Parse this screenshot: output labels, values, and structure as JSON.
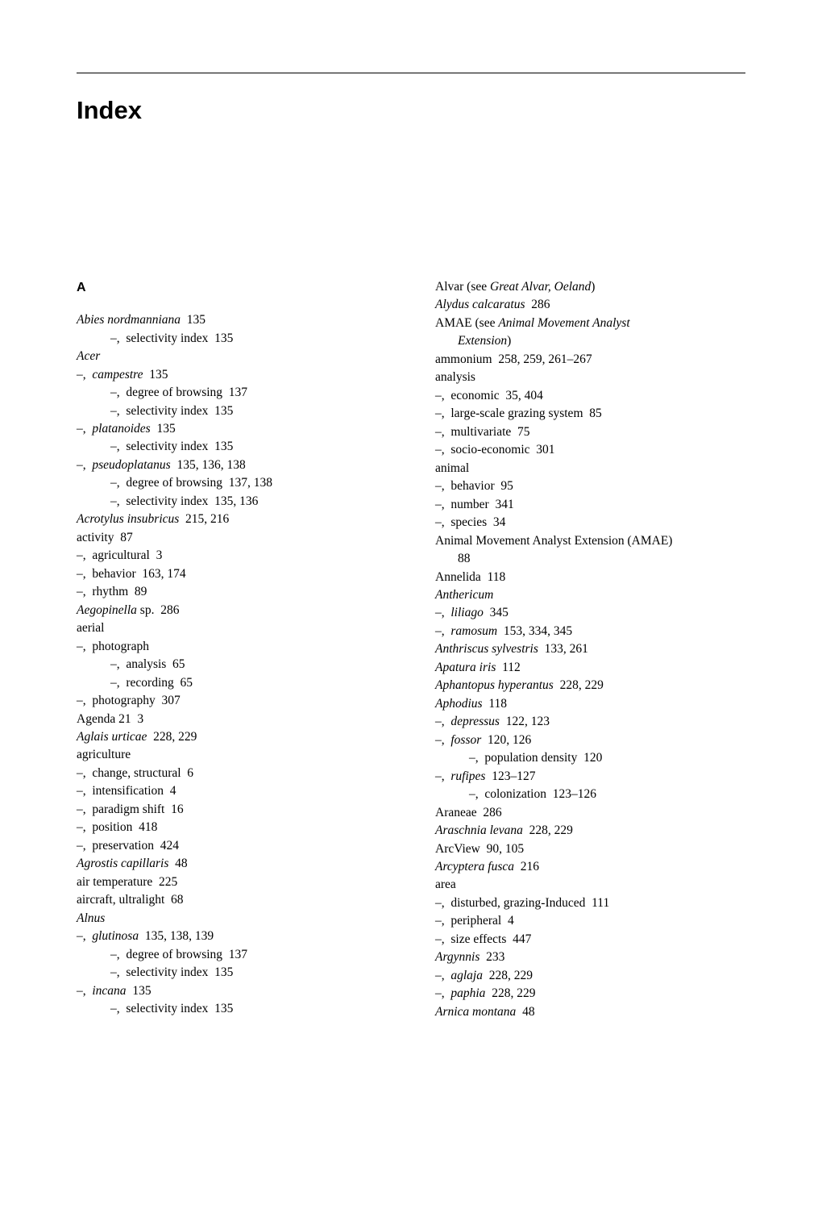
{
  "title": "Index",
  "section_letter": "A",
  "left_column": [
    {
      "level": 0,
      "html": "<span class='italic'>Abies nordmanniana</span>  135"
    },
    {
      "level": 2,
      "html": "–,  selectivity index  135"
    },
    {
      "level": 0,
      "html": "<span class='italic'>Acer</span>"
    },
    {
      "level": 1,
      "html": "–,  <span class='italic'>campestre</span>  135"
    },
    {
      "level": 2,
      "html": "–,  degree of browsing  137"
    },
    {
      "level": 2,
      "html": "–,  selectivity index  135"
    },
    {
      "level": 1,
      "html": "–,  <span class='italic'>platanoides</span>  135"
    },
    {
      "level": 2,
      "html": "–,  selectivity index  135"
    },
    {
      "level": 1,
      "html": "–,  <span class='italic'>pseudoplatanus</span>  135, 136, 138"
    },
    {
      "level": 2,
      "html": "–,  degree of browsing  137, 138"
    },
    {
      "level": 2,
      "html": "–,  selectivity index  135, 136"
    },
    {
      "level": 0,
      "html": "<span class='italic'>Acrotylus insubricus</span>  215, 216"
    },
    {
      "level": 0,
      "html": "activity  87"
    },
    {
      "level": 1,
      "html": "–,  agricultural  3"
    },
    {
      "level": 1,
      "html": "–,  behavior  163, 174"
    },
    {
      "level": 1,
      "html": "–,  rhythm  89"
    },
    {
      "level": 0,
      "html": "<span class='italic'>Aegopinella</span> sp.  286"
    },
    {
      "level": 0,
      "html": "aerial"
    },
    {
      "level": 1,
      "html": "–,  photograph"
    },
    {
      "level": 2,
      "html": "–,  analysis  65"
    },
    {
      "level": 2,
      "html": "–,  recording  65"
    },
    {
      "level": 1,
      "html": "–,  photography  307"
    },
    {
      "level": 0,
      "html": "Agenda 21  3"
    },
    {
      "level": 0,
      "html": "<span class='italic'>Aglais urticae</span>  228, 229"
    },
    {
      "level": 0,
      "html": "agriculture"
    },
    {
      "level": 1,
      "html": "–,  change, structural  6"
    },
    {
      "level": 1,
      "html": "–,  intensification  4"
    },
    {
      "level": 1,
      "html": "–,  paradigm shift  16"
    },
    {
      "level": 1,
      "html": "–,  position  418"
    },
    {
      "level": 1,
      "html": "–,  preservation  424"
    },
    {
      "level": 0,
      "html": "<span class='italic'>Agrostis capillaris</span>  48"
    },
    {
      "level": 0,
      "html": "air temperature  225"
    },
    {
      "level": 0,
      "html": "aircraft, ultralight  68"
    },
    {
      "level": 0,
      "html": "<span class='italic'>Alnus</span>"
    },
    {
      "level": 1,
      "html": "–,  <span class='italic'>glutinosa</span>  135, 138, 139"
    },
    {
      "level": 2,
      "html": "–,  degree of browsing  137"
    },
    {
      "level": 2,
      "html": "–,  selectivity index  135"
    },
    {
      "level": 1,
      "html": "–,  <span class='italic'>incana</span>  135"
    },
    {
      "level": 2,
      "html": "–,  selectivity index  135"
    }
  ],
  "right_column": [
    {
      "level": 0,
      "html": "Alvar (see <span class='italic'>Great Alvar, Oeland</span>)"
    },
    {
      "level": 0,
      "html": "<span class='italic'>Alydus calcaratus</span>  286"
    },
    {
      "level": 0,
      "html": "AMAE (see <span class='italic'>Animal Movement Analyst</span>"
    },
    {
      "level": "cont",
      "html": "<span class='italic'>Extension</span>)"
    },
    {
      "level": 0,
      "html": "ammonium  258, 259, 261–267"
    },
    {
      "level": 0,
      "html": "analysis"
    },
    {
      "level": 1,
      "html": "–,  economic  35, 404"
    },
    {
      "level": 1,
      "html": "–,  large-scale grazing system  85"
    },
    {
      "level": 1,
      "html": "–,  multivariate  75"
    },
    {
      "level": 1,
      "html": "–,  socio-economic  301"
    },
    {
      "level": 0,
      "html": "animal"
    },
    {
      "level": 1,
      "html": "–,  behavior  95"
    },
    {
      "level": 1,
      "html": "–,  number  341"
    },
    {
      "level": 1,
      "html": "–,  species  34"
    },
    {
      "level": 0,
      "html": "Animal Movement Analyst Extension (AMAE)"
    },
    {
      "level": "cont",
      "html": "88"
    },
    {
      "level": 0,
      "html": "Annelida  118"
    },
    {
      "level": 0,
      "html": "<span class='italic'>Anthericum</span>"
    },
    {
      "level": 1,
      "html": "–,  <span class='italic'>liliago</span>  345"
    },
    {
      "level": 1,
      "html": "–,  <span class='italic'>ramosum</span>  153, 334, 345"
    },
    {
      "level": 0,
      "html": "<span class='italic'>Anthriscus sylvestris</span>  133, 261"
    },
    {
      "level": 0,
      "html": "<span class='italic'>Apatura iris</span>  112"
    },
    {
      "level": 0,
      "html": "<span class='italic'>Aphantopus hyperantus</span>  228, 229"
    },
    {
      "level": 0,
      "html": "<span class='italic'>Aphodius</span>  118"
    },
    {
      "level": 1,
      "html": "–,  <span class='italic'>depressus</span>  122, 123"
    },
    {
      "level": 1,
      "html": "–,  <span class='italic'>fossor</span>  120, 126"
    },
    {
      "level": 2,
      "html": "–,  population density  120"
    },
    {
      "level": 1,
      "html": "–,  <span class='italic'>rufipes</span>  123–127"
    },
    {
      "level": 2,
      "html": "–,  colonization  123–126"
    },
    {
      "level": 0,
      "html": "Araneae  286"
    },
    {
      "level": 0,
      "html": "<span class='italic'>Araschnia levana</span>  228, 229"
    },
    {
      "level": 0,
      "html": "ArcView  90, 105"
    },
    {
      "level": 0,
      "html": "<span class='italic'>Arcyptera fusca</span>  216"
    },
    {
      "level": 0,
      "html": "area"
    },
    {
      "level": 1,
      "html": "–,  disturbed, grazing-Induced  111"
    },
    {
      "level": 1,
      "html": "–,  peripheral  4"
    },
    {
      "level": 1,
      "html": "–,  size effects  447"
    },
    {
      "level": 0,
      "html": "<span class='italic'>Argynnis</span>  233"
    },
    {
      "level": 1,
      "html": "–,  <span class='italic'>aglaja</span>  228, 229"
    },
    {
      "level": 1,
      "html": "–,  <span class='italic'>paphia</span>  228, 229"
    },
    {
      "level": 0,
      "html": "<span class='italic'>Arnica montana</span>  48"
    }
  ]
}
